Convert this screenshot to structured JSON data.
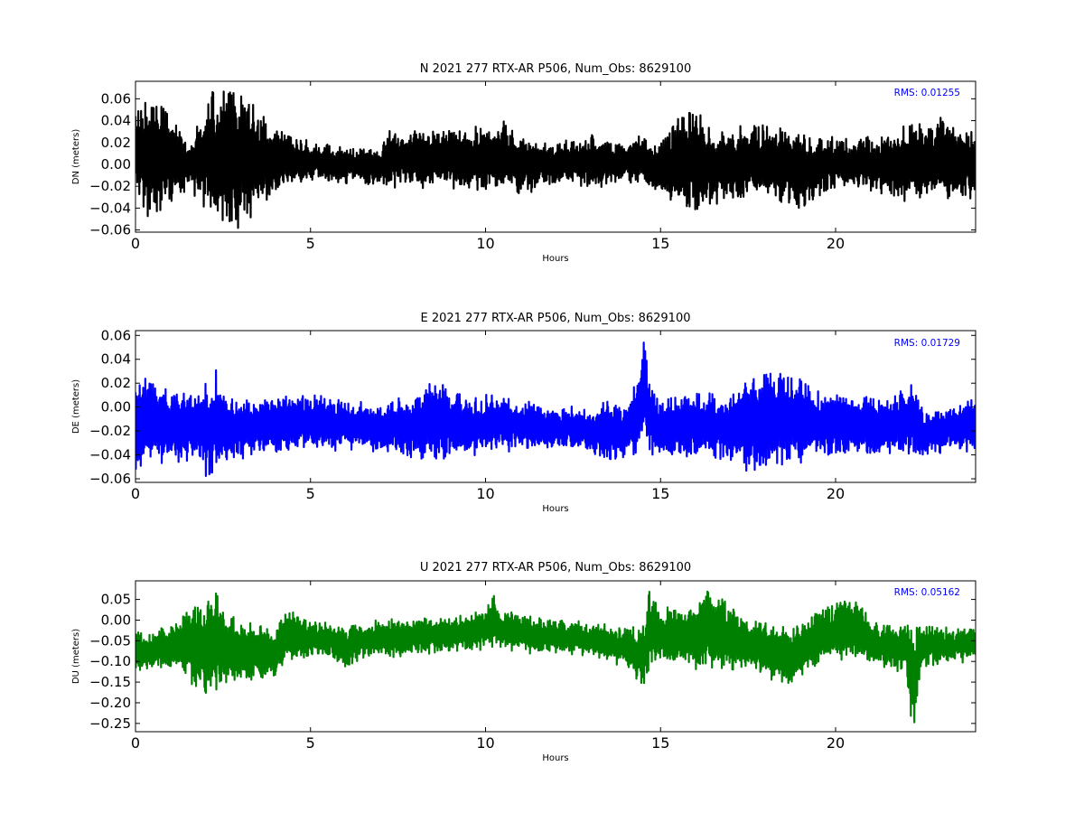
{
  "chart_data": [
    {
      "type": "line",
      "title": "N 2021 277 RTX-AR  P506, Num_Obs: 8629100",
      "xlabel": "Hours",
      "ylabel": "DN (meters)",
      "xlim": [
        0,
        24
      ],
      "ylim": [
        -0.062,
        0.076
      ],
      "xticks": [
        0,
        5,
        10,
        15,
        20
      ],
      "xtick_labels": [
        "0",
        "5",
        "10",
        "15",
        "20"
      ],
      "yticks": [
        0.06,
        0.04,
        0.02,
        0.0,
        -0.02,
        -0.04,
        -0.06
      ],
      "ytick_labels": [
        "0.06",
        "0.04",
        "0.02",
        "0.00",
        "−0.02",
        "−0.04",
        "−0.06"
      ],
      "grid": false,
      "series": [
        {
          "color": "#000000",
          "upper": [
            [
              0,
              0.05
            ],
            [
              0.5,
              0.06
            ],
            [
              0.8,
              0.05
            ],
            [
              1.5,
              0.02
            ],
            [
              2.2,
              0.065
            ],
            [
              2.8,
              0.07
            ],
            [
              3.5,
              0.05
            ],
            [
              4.2,
              0.03
            ],
            [
              5,
              0.02
            ],
            [
              6,
              0.015
            ],
            [
              7,
              0.015
            ],
            [
              7.2,
              0.03
            ],
            [
              8.5,
              0.03
            ],
            [
              10,
              0.035
            ],
            [
              10.5,
              0.04
            ],
            [
              11,
              0.025
            ],
            [
              12,
              0.02
            ],
            [
              13,
              0.025
            ],
            [
              14,
              0.02
            ],
            [
              14.5,
              0.025
            ],
            [
              14.8,
              0.015
            ],
            [
              15.2,
              0.03
            ],
            [
              15.5,
              0.045
            ],
            [
              16,
              0.05
            ],
            [
              16.5,
              0.03
            ],
            [
              18,
              0.035
            ],
            [
              19,
              0.03
            ],
            [
              20,
              0.025
            ],
            [
              21,
              0.025
            ],
            [
              22,
              0.035
            ],
            [
              23,
              0.04
            ],
            [
              24,
              0.03
            ]
          ],
          "lower": [
            [
              0,
              -0.03
            ],
            [
              0.5,
              -0.055
            ],
            [
              0.8,
              -0.04
            ],
            [
              1.5,
              -0.02
            ],
            [
              2.2,
              -0.05
            ],
            [
              2.8,
              -0.06
            ],
            [
              3.5,
              -0.04
            ],
            [
              4.2,
              -0.02
            ],
            [
              5,
              -0.015
            ],
            [
              6,
              -0.015
            ],
            [
              7,
              -0.02
            ],
            [
              8.5,
              -0.02
            ],
            [
              10,
              -0.025
            ],
            [
              11,
              -0.025
            ],
            [
              12,
              -0.02
            ],
            [
              13,
              -0.02
            ],
            [
              14,
              -0.015
            ],
            [
              14.5,
              -0.015
            ],
            [
              15,
              -0.03
            ],
            [
              16,
              -0.045
            ],
            [
              17,
              -0.03
            ],
            [
              18,
              -0.03
            ],
            [
              19,
              -0.04
            ],
            [
              20,
              -0.02
            ],
            [
              21,
              -0.025
            ],
            [
              22,
              -0.035
            ],
            [
              23,
              -0.03
            ],
            [
              24,
              -0.03
            ]
          ],
          "noise": 0.006
        }
      ],
      "annotation": "RMS:  0.01255",
      "annotation_color": "#0000ff"
    },
    {
      "type": "line",
      "title": "E 2021 277 RTX-AR  P506, Num_Obs: 8629100",
      "xlabel": "Hours",
      "ylabel": "DE (meters)",
      "xlim": [
        0,
        24
      ],
      "ylim": [
        -0.063,
        0.064
      ],
      "xticks": [
        0,
        5,
        10,
        15,
        20
      ],
      "xtick_labels": [
        "0",
        "5",
        "10",
        "15",
        "20"
      ],
      "yticks": [
        0.06,
        0.04,
        0.02,
        0.0,
        -0.02,
        -0.04,
        -0.06
      ],
      "ytick_labels": [
        "0.06",
        "0.04",
        "0.02",
        "0.00",
        "−0.02",
        "−0.04",
        "−0.06"
      ],
      "grid": false,
      "series": [
        {
          "color": "#0000ff",
          "upper": [
            [
              0,
              0.02
            ],
            [
              0.3,
              0.03
            ],
            [
              1,
              0.01
            ],
            [
              2,
              0.02
            ],
            [
              2.3,
              0.03
            ],
            [
              2.7,
              0.005
            ],
            [
              3.5,
              0.005
            ],
            [
              4.5,
              0.01
            ],
            [
              5.5,
              0.01
            ],
            [
              6,
              0.005
            ],
            [
              7,
              0.0
            ],
            [
              8,
              0.01
            ],
            [
              8.7,
              0.025
            ],
            [
              9.5,
              0.005
            ],
            [
              10,
              0.01
            ],
            [
              11,
              0.005
            ],
            [
              12,
              0.0
            ],
            [
              13,
              0.0
            ],
            [
              14,
              0.005
            ],
            [
              14.3,
              0.02
            ],
            [
              14.5,
              0.063
            ],
            [
              14.7,
              0.02
            ],
            [
              15,
              0.005
            ],
            [
              16,
              0.01
            ],
            [
              17,
              0.01
            ],
            [
              17.7,
              0.03
            ],
            [
              18.5,
              0.03
            ],
            [
              19.5,
              0.015
            ],
            [
              20.5,
              0.01
            ],
            [
              21.5,
              0.005
            ],
            [
              22.2,
              0.02
            ],
            [
              22.5,
              -0.005
            ],
            [
              23.5,
              0.0
            ],
            [
              24,
              0.01
            ]
          ],
          "lower": [
            [
              0,
              -0.055
            ],
            [
              0.5,
              -0.045
            ],
            [
              1.5,
              -0.045
            ],
            [
              2.2,
              -0.06
            ],
            [
              2.6,
              -0.045
            ],
            [
              3.5,
              -0.04
            ],
            [
              4.5,
              -0.035
            ],
            [
              5.5,
              -0.035
            ],
            [
              6.5,
              -0.035
            ],
            [
              7.5,
              -0.04
            ],
            [
              8.5,
              -0.045
            ],
            [
              9.5,
              -0.04
            ],
            [
              10.5,
              -0.035
            ],
            [
              11.5,
              -0.035
            ],
            [
              12.5,
              -0.035
            ],
            [
              13.5,
              -0.045
            ],
            [
              14.2,
              -0.045
            ],
            [
              14.5,
              -0.035
            ],
            [
              14.8,
              -0.04
            ],
            [
              16,
              -0.04
            ],
            [
              17,
              -0.045
            ],
            [
              17.8,
              -0.06
            ],
            [
              18.5,
              -0.05
            ],
            [
              19.5,
              -0.04
            ],
            [
              20.5,
              -0.04
            ],
            [
              21.5,
              -0.04
            ],
            [
              22.5,
              -0.04
            ],
            [
              23.5,
              -0.035
            ],
            [
              24,
              -0.04
            ]
          ],
          "noise": 0.005
        }
      ],
      "annotation": "RMS:  0.01729",
      "annotation_color": "#0000ff"
    },
    {
      "type": "line",
      "title": "U 2021 277 RTX-AR  P506, Num_Obs: 8629100",
      "xlabel": "Hours",
      "ylabel": "DU (meters)",
      "xlim": [
        0,
        24
      ],
      "ylim": [
        -0.27,
        0.095
      ],
      "xticks": [
        0,
        5,
        10,
        15,
        20
      ],
      "xtick_labels": [
        "0",
        "5",
        "10",
        "15",
        "20"
      ],
      "yticks": [
        0.05,
        0.0,
        -0.05,
        -0.1,
        -0.15,
        -0.2,
        -0.25
      ],
      "ytick_labels": [
        "0.05",
        "0.00",
        "−0.05",
        "−0.10",
        "−0.15",
        "−0.20",
        "−0.25"
      ],
      "grid": false,
      "series": [
        {
          "color": "#008000",
          "upper": [
            [
              0,
              -0.02
            ],
            [
              0.5,
              -0.03
            ],
            [
              1,
              -0.01
            ],
            [
              1.5,
              0.02
            ],
            [
              2,
              0.05
            ],
            [
              2.2,
              0.09
            ],
            [
              2.5,
              0.03
            ],
            [
              3,
              -0.01
            ],
            [
              3.5,
              -0.01
            ],
            [
              4,
              -0.03
            ],
            [
              4.3,
              0.02
            ],
            [
              5,
              0.0
            ],
            [
              6,
              -0.01
            ],
            [
              7,
              0.0
            ],
            [
              8,
              0.0
            ],
            [
              9,
              0.01
            ],
            [
              10,
              0.02
            ],
            [
              10.2,
              0.06
            ],
            [
              10.5,
              0.02
            ],
            [
              11,
              0.01
            ],
            [
              12,
              0.0
            ],
            [
              13,
              -0.01
            ],
            [
              14,
              -0.02
            ],
            [
              14.5,
              -0.01
            ],
            [
              14.7,
              0.08
            ],
            [
              15,
              0.03
            ],
            [
              15.5,
              0.02
            ],
            [
              16,
              0.04
            ],
            [
              16.3,
              0.09
            ],
            [
              16.8,
              0.05
            ],
            [
              17.5,
              0.0
            ],
            [
              18,
              0.0
            ],
            [
              18.8,
              -0.02
            ],
            [
              19.5,
              0.02
            ],
            [
              20,
              0.04
            ],
            [
              20.5,
              0.06
            ],
            [
              21,
              0.0
            ],
            [
              21.5,
              -0.01
            ],
            [
              22,
              -0.01
            ],
            [
              23,
              -0.02
            ],
            [
              24,
              -0.02
            ]
          ],
          "lower": [
            [
              0,
              -0.13
            ],
            [
              0.5,
              -0.12
            ],
            [
              1,
              -0.11
            ],
            [
              1.5,
              -0.14
            ],
            [
              1.9,
              -0.19
            ],
            [
              2.3,
              -0.17
            ],
            [
              2.7,
              -0.15
            ],
            [
              3.5,
              -0.14
            ],
            [
              4,
              -0.14
            ],
            [
              4.3,
              -0.1
            ],
            [
              5,
              -0.09
            ],
            [
              5.8,
              -0.1
            ],
            [
              6,
              -0.12
            ],
            [
              6.5,
              -0.09
            ],
            [
              7.5,
              -0.09
            ],
            [
              8.5,
              -0.08
            ],
            [
              9.5,
              -0.07
            ],
            [
              10.5,
              -0.07
            ],
            [
              11.5,
              -0.08
            ],
            [
              12.5,
              -0.08
            ],
            [
              13.5,
              -0.1
            ],
            [
              14.2,
              -0.12
            ],
            [
              14.5,
              -0.18
            ],
            [
              14.8,
              -0.1
            ],
            [
              15.5,
              -0.1
            ],
            [
              16,
              -0.13
            ],
            [
              16.5,
              -0.12
            ],
            [
              17.5,
              -0.12
            ],
            [
              18.5,
              -0.16
            ],
            [
              19,
              -0.14
            ],
            [
              19.5,
              -0.1
            ],
            [
              20.5,
              -0.09
            ],
            [
              21.5,
              -0.12
            ],
            [
              22,
              -0.12
            ],
            [
              22.2,
              -0.27
            ],
            [
              22.5,
              -0.11
            ],
            [
              23.5,
              -0.1
            ],
            [
              24,
              -0.09
            ]
          ],
          "noise": 0.012
        }
      ],
      "annotation": "RMS:  0.05162",
      "annotation_color": "#0000ff"
    }
  ]
}
